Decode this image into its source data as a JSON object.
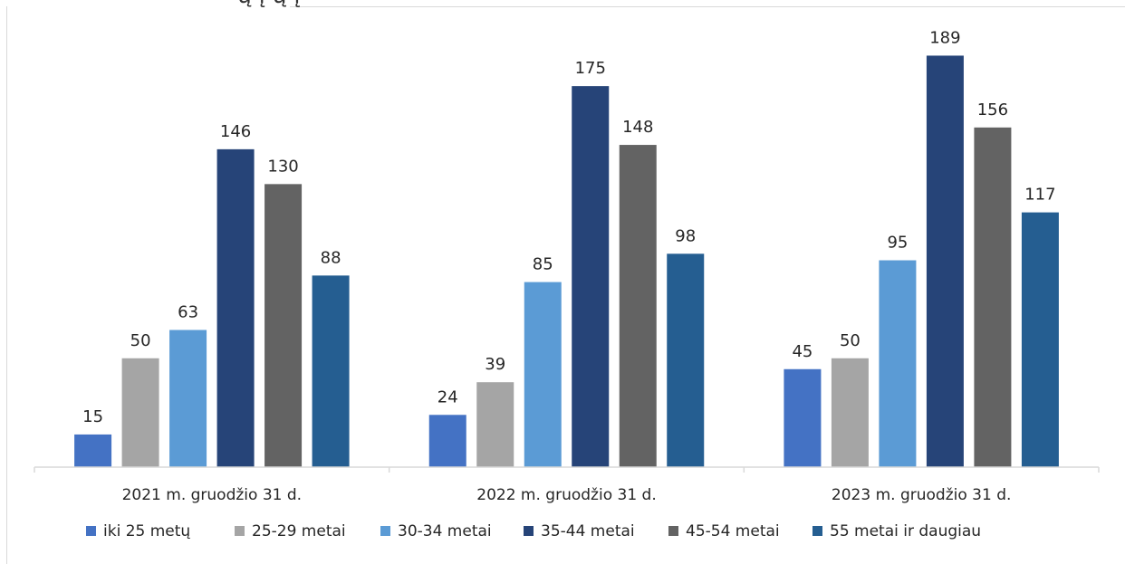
{
  "cut_title": "ų į             ų          į",
  "chart_data": {
    "type": "bar",
    "title": "",
    "xlabel": "",
    "ylabel": "",
    "ylim": [
      0,
      200
    ],
    "grid": false,
    "legend_position": "bottom",
    "categories": [
      "2021 m. gruodžio 31 d.",
      "2022 m. gruodžio 31 d.",
      "2023 m. gruodžio 31 d."
    ],
    "series": [
      {
        "name": "iki 25 metų",
        "color": "#4472c4",
        "values": [
          15,
          24,
          45
        ]
      },
      {
        "name": "25-29 metai",
        "color": "#a5a5a5",
        "values": [
          50,
          39,
          50
        ]
      },
      {
        "name": "30-34 metai",
        "color": "#5b9bd5",
        "values": [
          63,
          85,
          95
        ]
      },
      {
        "name": "35-44 metai",
        "color": "#264478",
        "values": [
          146,
          175,
          189
        ]
      },
      {
        "name": "45-54 metai",
        "color": "#636363",
        "values": [
          130,
          148,
          156
        ]
      },
      {
        "name": "55 metai ir daugiau",
        "color": "#255e91",
        "values": [
          88,
          98,
          117
        ]
      }
    ]
  }
}
